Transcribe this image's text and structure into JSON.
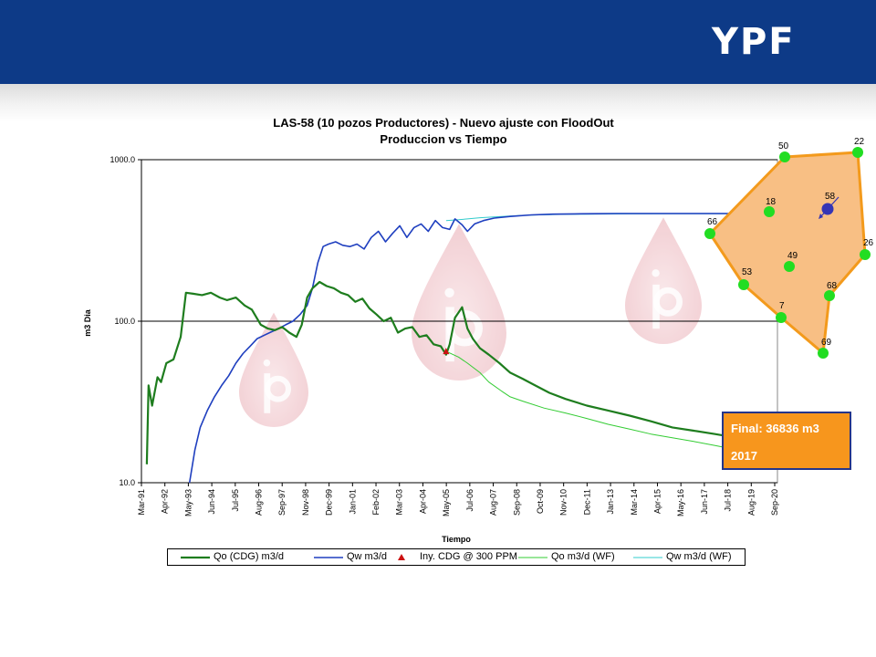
{
  "brand": {
    "logo_text": "YPF",
    "header_color": "#0d3a87"
  },
  "chart_data": {
    "type": "line",
    "title": "LAS-58 (10 pozos Productores) - Nuevo ajuste con FloodOut",
    "subtitle": "Produccion vs Tiempo",
    "xlabel": "Tiempo",
    "ylabel": "m3 Dia",
    "yscale": "log",
    "ylim": [
      10.0,
      1000.0
    ],
    "yticks": [
      "10.0",
      "100.0",
      "1000.0"
    ],
    "xlim": [
      "1991-03-01",
      "2020-12-01"
    ],
    "xticks": [
      "Mar-91",
      "Apr-92",
      "May-93",
      "Jun-94",
      "Jul-95",
      "Aug-96",
      "Sep-97",
      "Nov-98",
      "Dec-99",
      "Jan-01",
      "Feb-02",
      "Mar-03",
      "Apr-04",
      "May-05",
      "Jul-06",
      "Aug-07",
      "Sep-08",
      "Oct-09",
      "Nov-10",
      "Dec-11",
      "Jan-13",
      "Mar-14",
      "Apr-15",
      "May-16",
      "Jun-17",
      "Jul-18",
      "Aug-19",
      "Sep-20"
    ],
    "grid": "horizontal major lines",
    "legend_position": "bottom",
    "series": [
      {
        "name": "Qo (CDG) m3/d",
        "color": "#1e7d1e",
        "width": 2.2,
        "x": [
          "1991-06",
          "1991-07",
          "1991-09",
          "1991-12",
          "1992-02",
          "1992-05",
          "1992-09",
          "1993-01",
          "1993-04",
          "1993-08",
          "1994-01",
          "1994-06",
          "1994-11",
          "1995-03",
          "1995-08",
          "1996-01",
          "1996-05",
          "1996-10",
          "1997-02",
          "1997-06",
          "1997-10",
          "1998-02",
          "1998-06",
          "1998-09",
          "1998-12",
          "1999-03",
          "1999-07",
          "1999-11",
          "2000-03",
          "2000-07",
          "2000-11",
          "2001-03",
          "2001-07",
          "2001-11",
          "2002-03",
          "2002-07",
          "2002-11",
          "2003-03",
          "2003-07",
          "2003-11",
          "2004-03",
          "2004-07",
          "2004-11",
          "2005-03",
          "2005-06",
          "2005-08",
          "2005-11",
          "2006-03",
          "2006-06",
          "2006-09",
          "2007-01",
          "2007-06",
          "2007-12",
          "2008-06",
          "2009-01",
          "2009-08",
          "2010-04",
          "2011-01",
          "2012-01",
          "2013-01",
          "2014-01",
          "2015-01",
          "2016-01",
          "2017-01",
          "2018-01",
          "2019-01",
          "2020-01"
        ],
        "y": [
          13,
          40,
          30,
          45,
          42,
          55,
          58,
          80,
          150,
          148,
          145,
          150,
          140,
          135,
          140,
          125,
          118,
          95,
          90,
          88,
          92,
          85,
          80,
          95,
          140,
          160,
          175,
          165,
          160,
          150,
          145,
          132,
          138,
          120,
          110,
          100,
          105,
          85,
          90,
          92,
          80,
          82,
          72,
          70,
          62,
          72,
          105,
          122,
          90,
          78,
          68,
          62,
          55,
          48,
          44,
          40,
          36,
          33,
          30,
          28,
          26,
          24,
          22,
          21,
          20,
          19,
          18
        ]
      },
      {
        "name": "Qw m3/d",
        "color": "#1f3fbf",
        "width": 1.6,
        "x": [
          "1993-06",
          "1993-09",
          "1993-12",
          "1994-04",
          "1994-08",
          "1994-12",
          "1995-04",
          "1995-08",
          "1995-12",
          "1996-04",
          "1996-08",
          "1996-12",
          "1997-04",
          "1997-08",
          "1997-12",
          "1998-04",
          "1998-08",
          "1998-12",
          "1999-03",
          "1999-06",
          "1999-09",
          "1999-12",
          "2000-04",
          "2000-08",
          "2000-12",
          "2001-04",
          "2001-08",
          "2001-12",
          "2002-04",
          "2002-08",
          "2002-12",
          "2003-04",
          "2003-08",
          "2003-12",
          "2004-04",
          "2004-08",
          "2004-12",
          "2005-04",
          "2005-08",
          "2005-11",
          "2006-03",
          "2006-06",
          "2006-10",
          "2007-03",
          "2007-09",
          "2008-06",
          "2009-06",
          "2010-06",
          "2011-06",
          "2012-06",
          "2013-06",
          "2014-06",
          "2015-06",
          "2016-06",
          "2017-06",
          "2018-06",
          "2019-06",
          "2020-06"
        ],
        "y": [
          10,
          16,
          22,
          28,
          34,
          40,
          46,
          55,
          63,
          70,
          78,
          82,
          86,
          90,
          95,
          100,
          110,
          125,
          160,
          230,
          290,
          300,
          310,
          295,
          290,
          300,
          280,
          330,
          360,
          310,
          350,
          390,
          330,
          380,
          400,
          360,
          420,
          380,
          370,
          430,
          395,
          360,
          400,
          420,
          435,
          445,
          455,
          460,
          462,
          463,
          464,
          464,
          464,
          464,
          464,
          464,
          464,
          464
        ]
      },
      {
        "name": "Iny. CDG @ 300 PPM",
        "color": "#cc1111",
        "marker": "triangle",
        "x": [
          "2005-06"
        ],
        "y": [
          65
        ]
      },
      {
        "name": "Qo m3/d (WF)",
        "color": "#33cc33",
        "width": 1,
        "x": [
          "2005-06",
          "2006-01",
          "2006-06",
          "2007-01",
          "2007-06",
          "2008-01",
          "2008-06",
          "2009-01",
          "2010-01",
          "2011-01",
          "2012-01",
          "2013-01",
          "2014-01",
          "2015-01",
          "2016-01",
          "2017-01",
          "2018-01",
          "2019-01",
          "2020-01"
        ],
        "y": [
          65,
          60,
          55,
          48,
          42,
          37,
          34,
          32,
          29,
          27,
          25,
          23,
          21.5,
          20,
          19,
          18,
          17,
          16,
          15.5
        ]
      },
      {
        "name": "Qw m3/d (WF)",
        "color": "#33cccc",
        "width": 1,
        "x": [
          "2005-06",
          "2006-01",
          "2006-06",
          "2007-01",
          "2008-01",
          "2009-01",
          "2010-01",
          "2011-01",
          "2012-01",
          "2014-01",
          "2016-01",
          "2018-01",
          "2020-01"
        ],
        "y": [
          420,
          425,
          430,
          437,
          445,
          452,
          456,
          459,
          460,
          462,
          463,
          463,
          463
        ]
      }
    ]
  },
  "well_map": {
    "fill_color": "#f8bf84",
    "outline_color": "#f39a1c",
    "producer_color": "#22dd22",
    "injector_color": "#3535b5",
    "producers": [
      "50",
      "22",
      "18",
      "58",
      "66",
      "26",
      "49",
      "53",
      "68",
      "7",
      "69"
    ],
    "injector": "58"
  },
  "annotation": {
    "line1": "Final: 36836 m3",
    "line2": "2017",
    "fill": "#f7961d"
  }
}
